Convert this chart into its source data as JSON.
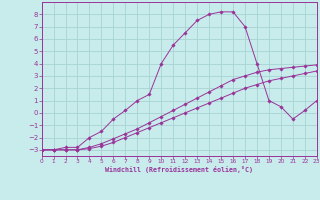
{
  "xlabel": "Windchill (Refroidissement éolien,°C)",
  "bg_color": "#c8ecec",
  "grid_color": "#a8d4d4",
  "line_color": "#993399",
  "xlim": [
    0,
    23
  ],
  "ylim": [
    -3.5,
    9.0
  ],
  "xticks": [
    0,
    1,
    2,
    3,
    4,
    5,
    6,
    7,
    8,
    9,
    10,
    11,
    12,
    13,
    14,
    15,
    16,
    17,
    18,
    19,
    20,
    21,
    22,
    23
  ],
  "yticks": [
    -3,
    -2,
    -1,
    0,
    1,
    2,
    3,
    4,
    5,
    6,
    7,
    8
  ],
  "series": [
    {
      "x": [
        0,
        1,
        2,
        3,
        4,
        5,
        6,
        7,
        8,
        9,
        10,
        11,
        12,
        13,
        14,
        15,
        16,
        17,
        18,
        19,
        20,
        21,
        22,
        23
      ],
      "y": [
        -3.0,
        -3.0,
        -3.0,
        -3.0,
        -2.9,
        -2.7,
        -2.4,
        -2.0,
        -1.6,
        -1.2,
        -0.8,
        -0.4,
        0.0,
        0.4,
        0.8,
        1.2,
        1.6,
        2.0,
        2.3,
        2.6,
        2.8,
        3.0,
        3.2,
        3.4
      ]
    },
    {
      "x": [
        0,
        1,
        2,
        3,
        4,
        5,
        6,
        7,
        8,
        9,
        10,
        11,
        12,
        13,
        14,
        15,
        16,
        17,
        18,
        19,
        20,
        21,
        22,
        23
      ],
      "y": [
        -3.0,
        -3.0,
        -3.0,
        -3.0,
        -2.8,
        -2.5,
        -2.1,
        -1.7,
        -1.3,
        -0.8,
        -0.3,
        0.2,
        0.7,
        1.2,
        1.7,
        2.2,
        2.7,
        3.0,
        3.3,
        3.5,
        3.6,
        3.7,
        3.8,
        3.9
      ]
    },
    {
      "x": [
        0,
        1,
        2,
        3,
        4,
        5,
        6,
        7,
        8,
        9,
        10,
        11,
        12,
        13,
        14,
        15,
        16,
        17,
        18,
        19,
        20,
        21,
        22,
        23
      ],
      "y": [
        -3.0,
        -3.0,
        -2.8,
        -2.8,
        -2.0,
        -1.5,
        -0.5,
        0.2,
        1.0,
        1.5,
        4.0,
        5.5,
        6.5,
        7.5,
        8.0,
        8.2,
        8.2,
        7.0,
        4.0,
        1.0,
        0.5,
        -0.5,
        0.2,
        1.0
      ]
    }
  ]
}
